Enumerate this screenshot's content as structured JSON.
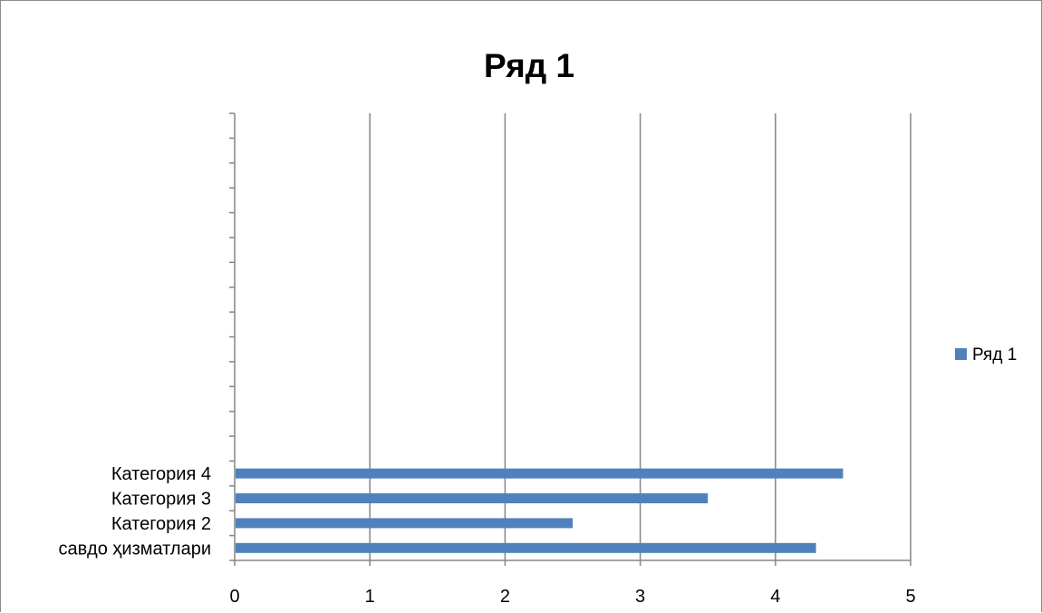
{
  "chart_data": {
    "type": "bar",
    "orientation": "horizontal",
    "title": "Ряд 1",
    "categories": [
      "савдо ҳизматлари",
      "Категория 2",
      "Категория 3",
      "Категория 4"
    ],
    "series": [
      {
        "name": "Ряд 1",
        "values": [
          4.3,
          2.5,
          3.5,
          4.5
        ],
        "color": "#4F81BD"
      }
    ],
    "xlim": [
      0,
      5
    ],
    "x_ticks": [
      "0",
      "1",
      "2",
      "3",
      "4",
      "5"
    ],
    "gridlines": "vertical",
    "gridline_color": "#868686",
    "legend_placement": "right"
  }
}
